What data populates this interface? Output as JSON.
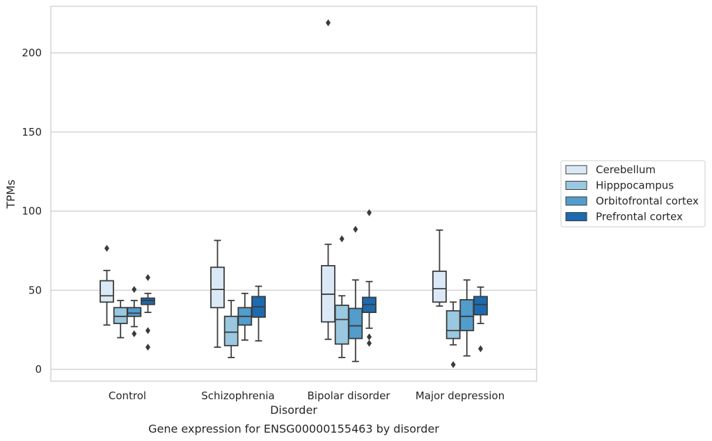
{
  "chart_data": {
    "type": "box",
    "title": "Gene expression for ENSG00000155463 by disorder",
    "xlabel": "Disorder",
    "ylabel": "TPMs",
    "ylim": [
      -7,
      230
    ],
    "yticks": [
      0,
      50,
      100,
      150,
      200
    ],
    "grid": "horizontal",
    "legend_position": "right",
    "categories": [
      "Control",
      "Schizophrenia",
      "Bipolar disorder",
      "Major depression"
    ],
    "series": [
      {
        "name": "Cerebellum",
        "color": "#dbe9f6",
        "boxes": [
          {
            "whisker_low": 28,
            "q1": 42.5,
            "median": 46.5,
            "q3": 56,
            "whisker_high": 62.5,
            "outliers": [
              76.5
            ]
          },
          {
            "whisker_low": 14,
            "q1": 39,
            "median": 50.5,
            "q3": 64.5,
            "whisker_high": 81.5,
            "outliers": []
          },
          {
            "whisker_low": 19,
            "q1": 30,
            "median": 47.5,
            "q3": 65.5,
            "whisker_high": 79,
            "outliers": [
              219
            ]
          },
          {
            "whisker_low": 40,
            "q1": 42.5,
            "median": 51,
            "q3": 62,
            "whisker_high": 88,
            "outliers": []
          }
        ]
      },
      {
        "name": "Hipppocampus",
        "color": "#9ac8e0",
        "boxes": [
          {
            "whisker_low": 20,
            "q1": 29,
            "median": 33.5,
            "q3": 39,
            "whisker_high": 43.5,
            "outliers": []
          },
          {
            "whisker_low": 7.5,
            "q1": 15,
            "median": 23.5,
            "q3": 33.5,
            "whisker_high": 43.5,
            "outliers": []
          },
          {
            "whisker_low": 7.5,
            "q1": 16,
            "median": 31.5,
            "q3": 40.5,
            "whisker_high": 46.5,
            "outliers": [
              82.5
            ]
          },
          {
            "whisker_low": 15.5,
            "q1": 19.5,
            "median": 24.5,
            "q3": 37,
            "whisker_high": 42.5,
            "outliers": [
              3
            ]
          }
        ]
      },
      {
        "name": "Orbitofrontal cortex",
        "color": "#529dcc",
        "boxes": [
          {
            "whisker_low": 27,
            "q1": 33.5,
            "median": 35.5,
            "q3": 39,
            "whisker_high": 43.5,
            "outliers": [
              50.5,
              22.5
            ]
          },
          {
            "whisker_low": 18.5,
            "q1": 28,
            "median": 33.5,
            "q3": 39,
            "whisker_high": 48,
            "outliers": []
          },
          {
            "whisker_low": 5,
            "q1": 19.5,
            "median": 27.5,
            "q3": 38.5,
            "whisker_high": 56.5,
            "outliers": [
              88.5
            ]
          },
          {
            "whisker_low": 8.5,
            "q1": 24.5,
            "median": 33.5,
            "q3": 44,
            "whisker_high": 56.5,
            "outliers": []
          }
        ]
      },
      {
        "name": "Prefrontal cortex",
        "color": "#1c6aaf",
        "boxes": [
          {
            "whisker_low": 36,
            "q1": 41,
            "median": 43.5,
            "q3": 45,
            "whisker_high": 48,
            "outliers": [
              58,
              24.5,
              14
            ]
          },
          {
            "whisker_low": 18,
            "q1": 33,
            "median": 39.5,
            "q3": 46,
            "whisker_high": 52.5,
            "outliers": []
          },
          {
            "whisker_low": 26,
            "q1": 36,
            "median": 41,
            "q3": 45.5,
            "whisker_high": 55.5,
            "outliers": [
              99,
              20.5,
              16.5
            ]
          },
          {
            "whisker_low": 29,
            "q1": 34.5,
            "median": 41,
            "q3": 46,
            "whisker_high": 52,
            "outliers": [
              13
            ]
          }
        ]
      }
    ]
  }
}
